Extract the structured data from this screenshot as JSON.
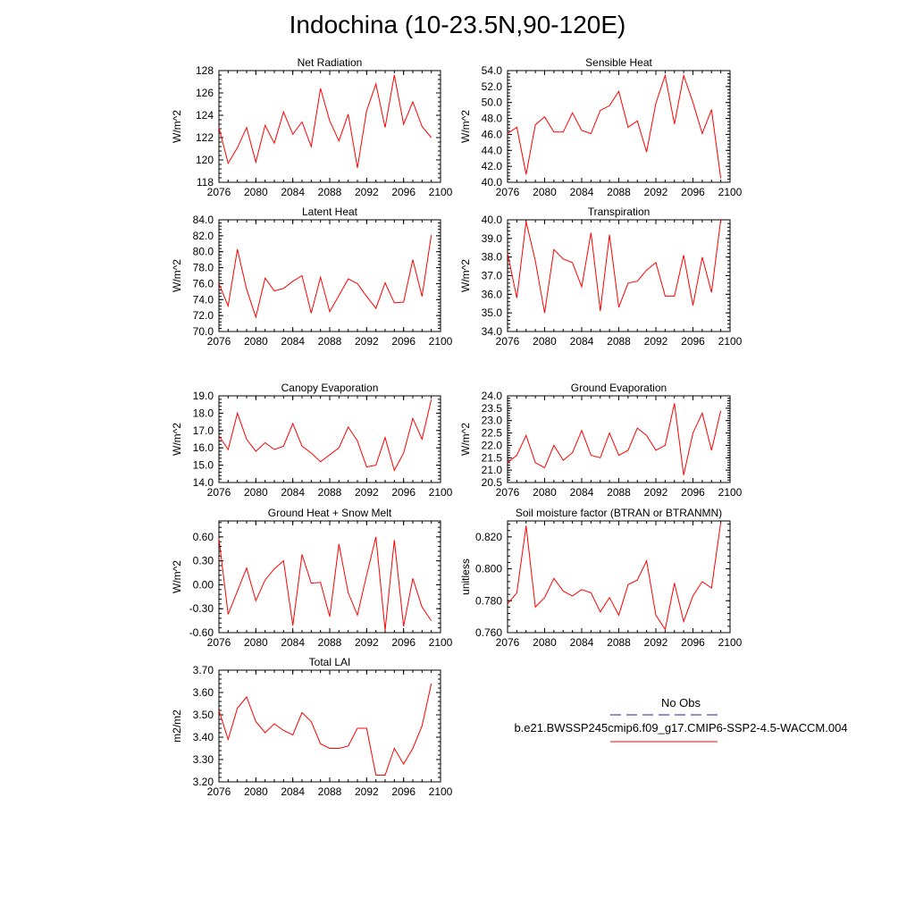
{
  "page": {
    "title": "Indochina (10-23.5N,90-120E)"
  },
  "legend": {
    "entries": [
      {
        "label": "No Obs",
        "color": "#1f1fb0",
        "style": "dashed"
      },
      {
        "label": "b.e21.BWSSP245cmip6.f09_g17.CMIP6-SSP2-4.5-WACCM.004",
        "color": "#ff0000",
        "style": "solid"
      }
    ]
  },
  "chart_data": [
    {
      "type": "line",
      "title": "Net Radiation",
      "ylabel": "W/m^2",
      "xlim": [
        2076,
        2100
      ],
      "ylim": [
        118,
        128
      ],
      "xticks": [
        "2076",
        "2080",
        "2084",
        "2088",
        "2092",
        "2096",
        "2100"
      ],
      "yticks": [
        "118",
        "120",
        "122",
        "124",
        "126",
        "128"
      ],
      "series": [
        {
          "color": "#ff0000",
          "x": [
            2076,
            2077,
            2078,
            2079,
            2080,
            2081,
            2082,
            2083,
            2084,
            2085,
            2086,
            2087,
            2088,
            2089,
            2090,
            2091,
            2092,
            2093,
            2094,
            2095,
            2096,
            2097,
            2098,
            2099
          ],
          "y": [
            122.9,
            119.7,
            121.1,
            122.9,
            119.8,
            123.1,
            121.5,
            124.3,
            122.3,
            123.4,
            121.2,
            126.4,
            123.5,
            121.7,
            124.1,
            119.3,
            124.4,
            126.8,
            122.9,
            127.6,
            123.2,
            125.2,
            123.0,
            122.0
          ]
        }
      ]
    },
    {
      "type": "line",
      "title": "Sensible Heat",
      "ylabel": "W/m^2",
      "xlim": [
        2076,
        2100
      ],
      "ylim": [
        40,
        54
      ],
      "xticks": [
        "2076",
        "2080",
        "2084",
        "2088",
        "2092",
        "2096",
        "2100"
      ],
      "yticks": [
        "40.0",
        "42.0",
        "44.0",
        "46.0",
        "48.0",
        "50.0",
        "52.0",
        "54.0"
      ],
      "series": [
        {
          "color": "#ff0000",
          "x": [
            2076,
            2077,
            2078,
            2079,
            2080,
            2081,
            2082,
            2083,
            2084,
            2085,
            2086,
            2087,
            2088,
            2089,
            2090,
            2091,
            2092,
            2093,
            2094,
            2095,
            2096,
            2097,
            2098,
            2099
          ],
          "y": [
            46.1,
            46.9,
            41.0,
            47.2,
            48.2,
            46.3,
            46.3,
            48.7,
            46.5,
            46.1,
            49.0,
            49.6,
            51.4,
            46.9,
            47.7,
            43.8,
            49.9,
            53.4,
            47.3,
            53.4,
            50.0,
            46.1,
            49.1,
            40.5
          ]
        }
      ]
    },
    {
      "type": "line",
      "title": "Latent Heat",
      "ylabel": "W/m^2",
      "xlim": [
        2076,
        2100
      ],
      "ylim": [
        70,
        84
      ],
      "xticks": [
        "2076",
        "2080",
        "2084",
        "2088",
        "2092",
        "2096",
        "2100"
      ],
      "yticks": [
        "70.0",
        "72.0",
        "74.0",
        "76.0",
        "78.0",
        "80.0",
        "82.0",
        "84.0"
      ],
      "series": [
        {
          "color": "#ff0000",
          "x": [
            2076,
            2077,
            2078,
            2079,
            2080,
            2081,
            2082,
            2083,
            2084,
            2085,
            2086,
            2087,
            2088,
            2089,
            2090,
            2091,
            2092,
            2093,
            2094,
            2095,
            2096,
            2097,
            2098,
            2099
          ],
          "y": [
            76.0,
            73.2,
            80.3,
            75.3,
            71.8,
            76.7,
            75.1,
            75.4,
            76.3,
            77.0,
            72.3,
            76.8,
            72.5,
            74.5,
            76.6,
            76.0,
            74.4,
            72.9,
            76.1,
            73.6,
            73.7,
            79.0,
            74.4,
            82.1
          ]
        }
      ]
    },
    {
      "type": "line",
      "title": "Transpiration",
      "ylabel": "W/m^2",
      "xlim": [
        2076,
        2100
      ],
      "ylim": [
        34,
        40
      ],
      "xticks": [
        "2076",
        "2080",
        "2084",
        "2088",
        "2092",
        "2096",
        "2100"
      ],
      "yticks": [
        "34.0",
        "35.0",
        "36.0",
        "37.0",
        "38.0",
        "39.0",
        "40.0"
      ],
      "series": [
        {
          "color": "#ff0000",
          "x": [
            2076,
            2077,
            2078,
            2079,
            2080,
            2081,
            2082,
            2083,
            2084,
            2085,
            2086,
            2087,
            2088,
            2089,
            2090,
            2091,
            2092,
            2093,
            2094,
            2095,
            2096,
            2097,
            2098,
            2099
          ],
          "y": [
            38.2,
            35.8,
            39.9,
            37.8,
            35.0,
            38.4,
            37.9,
            37.7,
            36.4,
            39.3,
            35.1,
            39.2,
            35.3,
            36.6,
            36.7,
            37.3,
            37.7,
            35.9,
            35.9,
            38.1,
            35.4,
            38.0,
            36.1,
            40.0
          ]
        }
      ]
    },
    {
      "type": "line",
      "title": "Canopy Evaporation",
      "ylabel": "W/m^2",
      "xlim": [
        2076,
        2100
      ],
      "ylim": [
        14,
        19
      ],
      "xticks": [
        "2076",
        "2080",
        "2084",
        "2088",
        "2092",
        "2096",
        "2100"
      ],
      "yticks": [
        "14.0",
        "15.0",
        "16.0",
        "17.0",
        "18.0",
        "19.0"
      ],
      "series": [
        {
          "color": "#ff0000",
          "x": [
            2076,
            2077,
            2078,
            2079,
            2080,
            2081,
            2082,
            2083,
            2084,
            2085,
            2086,
            2087,
            2088,
            2089,
            2090,
            2091,
            2092,
            2093,
            2094,
            2095,
            2096,
            2097,
            2098,
            2099
          ],
          "y": [
            16.7,
            15.9,
            18.0,
            16.5,
            15.8,
            16.3,
            15.9,
            16.1,
            17.4,
            16.1,
            15.7,
            15.2,
            15.6,
            16.0,
            17.2,
            16.4,
            14.9,
            15.0,
            16.6,
            14.7,
            15.7,
            17.7,
            16.5,
            18.8
          ]
        }
      ]
    },
    {
      "type": "line",
      "title": "Ground Evaporation",
      "ylabel": "W/m^2",
      "xlim": [
        2076,
        2100
      ],
      "ylim": [
        20.5,
        24
      ],
      "xticks": [
        "2076",
        "2080",
        "2084",
        "2088",
        "2092",
        "2096",
        "2100"
      ],
      "yticks": [
        "20.5",
        "21.0",
        "21.5",
        "22.0",
        "22.5",
        "23.0",
        "23.5",
        "24.0"
      ],
      "series": [
        {
          "color": "#ff0000",
          "x": [
            2076,
            2077,
            2078,
            2079,
            2080,
            2081,
            2082,
            2083,
            2084,
            2085,
            2086,
            2087,
            2088,
            2089,
            2090,
            2091,
            2092,
            2093,
            2094,
            2095,
            2096,
            2097,
            2098,
            2099
          ],
          "y": [
            21.3,
            21.6,
            22.4,
            21.3,
            21.1,
            22.0,
            21.4,
            21.7,
            22.6,
            21.6,
            21.5,
            22.5,
            21.6,
            21.8,
            22.7,
            22.4,
            21.8,
            22.0,
            23.7,
            20.8,
            22.5,
            23.3,
            21.8,
            23.4
          ]
        }
      ]
    },
    {
      "type": "line",
      "title": "Ground Heat + Snow Melt",
      "ylabel": "W/m^2",
      "xlim": [
        2076,
        2100
      ],
      "ylim": [
        -0.6,
        0.8
      ],
      "xticks": [
        "2076",
        "2080",
        "2084",
        "2088",
        "2092",
        "2096",
        "2100"
      ],
      "yticks": [
        "-0.60",
        "-0.30",
        "0.00",
        "0.30",
        "0.60"
      ],
      "series": [
        {
          "color": "#ff0000",
          "x": [
            2076,
            2077,
            2078,
            2079,
            2080,
            2081,
            2082,
            2083,
            2084,
            2085,
            2086,
            2087,
            2088,
            2089,
            2090,
            2091,
            2092,
            2093,
            2094,
            2095,
            2096,
            2097,
            2098,
            2099
          ],
          "y": [
            0.58,
            -0.37,
            -0.08,
            0.21,
            -0.2,
            0.06,
            0.2,
            0.3,
            -0.51,
            0.38,
            0.02,
            0.03,
            -0.4,
            0.51,
            -0.1,
            -0.38,
            0.12,
            0.6,
            -0.57,
            0.56,
            -0.52,
            0.08,
            -0.28,
            -0.45
          ]
        }
      ]
    },
    {
      "type": "line",
      "title": "Soil moisture factor (BTRAN or BTRANMN)",
      "ylabel": "unitless",
      "xlim": [
        2076,
        2100
      ],
      "ylim": [
        0.76,
        0.83
      ],
      "xticks": [
        "2076",
        "2080",
        "2084",
        "2088",
        "2092",
        "2096",
        "2100"
      ],
      "yticks": [
        "0.760",
        "0.780",
        "0.800",
        "0.820"
      ],
      "series": [
        {
          "color": "#ff0000",
          "x": [
            2076,
            2077,
            2078,
            2079,
            2080,
            2081,
            2082,
            2083,
            2084,
            2085,
            2086,
            2087,
            2088,
            2089,
            2090,
            2091,
            2092,
            2093,
            2094,
            2095,
            2096,
            2097,
            2098,
            2099
          ],
          "y": [
            0.778,
            0.785,
            0.827,
            0.776,
            0.782,
            0.794,
            0.786,
            0.783,
            0.787,
            0.785,
            0.773,
            0.782,
            0.771,
            0.79,
            0.793,
            0.805,
            0.771,
            0.762,
            0.791,
            0.767,
            0.783,
            0.792,
            0.788,
            0.829
          ]
        }
      ]
    },
    {
      "type": "line",
      "title": "Total LAI",
      "ylabel": "m2/m2",
      "xlim": [
        2076,
        2100
      ],
      "ylim": [
        3.2,
        3.7
      ],
      "xticks": [
        "2076",
        "2080",
        "2084",
        "2088",
        "2092",
        "2096",
        "2100"
      ],
      "yticks": [
        "3.20",
        "3.30",
        "3.40",
        "3.50",
        "3.60",
        "3.70"
      ],
      "series": [
        {
          "color": "#ff0000",
          "x": [
            2076,
            2077,
            2078,
            2079,
            2080,
            2081,
            2082,
            2083,
            2084,
            2085,
            2086,
            2087,
            2088,
            2089,
            2090,
            2091,
            2092,
            2093,
            2094,
            2095,
            2096,
            2097,
            2098,
            2099
          ],
          "y": [
            3.52,
            3.39,
            3.53,
            3.58,
            3.47,
            3.42,
            3.46,
            3.43,
            3.41,
            3.51,
            3.47,
            3.37,
            3.35,
            3.35,
            3.36,
            3.44,
            3.44,
            3.23,
            3.23,
            3.35,
            3.28,
            3.35,
            3.45,
            3.64
          ]
        }
      ]
    }
  ]
}
